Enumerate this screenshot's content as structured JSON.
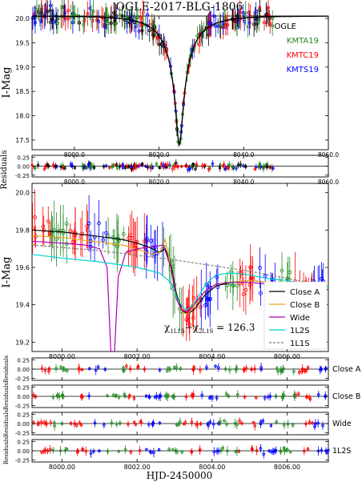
{
  "chart_data": [
    {
      "panel": "top-lightcurve",
      "type": "scatter",
      "title": "OGLE-2017-BLG-1806",
      "ylabel": "I-Mag",
      "xlim": [
        7990,
        8060
      ],
      "ylim": [
        20.05,
        17.3
      ],
      "yinverted": true,
      "xticks": [
        8000.0,
        8020.0,
        8040.0,
        8060.0
      ],
      "xtick_labels": [
        "8000.0",
        "8020.0",
        "8040.0",
        "8060.0"
      ],
      "yticks": [
        17.5,
        18.0,
        18.5,
        19.0,
        19.5,
        20.0
      ],
      "ytick_labels": [
        "17.5",
        "18.0",
        "18.5",
        "19.0",
        "19.5",
        "20.0"
      ],
      "legend_position": "top-right",
      "legend": [
        {
          "name": "OGLE",
          "color": "#000000"
        },
        {
          "name": "KMTA19",
          "color": "#228b22"
        },
        {
          "name": "KMTC19",
          "color": "#ff0000"
        },
        {
          "name": "KMTS19",
          "color": "#0000ff"
        }
      ],
      "model": {
        "type": "paczynski",
        "t0": 8024.8,
        "peak_mag": 17.4,
        "base_mag": 20.05,
        "tE": 9.0
      },
      "observations_note_color_order": [
        "#000000",
        "#228b22",
        "#ff0000",
        "#0000ff"
      ]
    },
    {
      "panel": "top-residuals",
      "type": "scatter",
      "ylabel": "Residuals",
      "xlim": [
        7990,
        8060
      ],
      "ylim": [
        0.3,
        -0.3
      ],
      "yticks": [
        -0.25,
        0.0,
        0.25
      ],
      "ytick_labels": [
        "-0.25",
        "0.00",
        "0.25"
      ],
      "xticks": [
        8000.0,
        8020.0,
        8040.0,
        8060.0
      ],
      "xtick_labels": [
        "8000.0",
        "8020.0",
        "8040.0",
        "8060.0"
      ]
    },
    {
      "panel": "zoom-lightcurve",
      "type": "line",
      "ylabel": "I-Mag",
      "xlim": [
        7999.2,
        8007.1
      ],
      "ylim": [
        20.05,
        19.15
      ],
      "yinverted": true,
      "xticks": [
        8000.0,
        8002.0,
        8004.0,
        8006.0
      ],
      "xtick_labels": [
        "8000.00",
        "8002.00",
        "8004.00",
        "8006.00"
      ],
      "yticks": [
        19.2,
        19.4,
        19.6,
        19.8,
        20.0
      ],
      "ytick_labels": [
        "19.2",
        "19.4",
        "19.6",
        "19.8",
        "20.0"
      ],
      "annotation": "χ²1L1S − χ²2L1S = 126.3",
      "annotation_prefix": "χ",
      "annotation_sub1": "1L1S",
      "annotation_mid": "−χ",
      "annotation_sub2": "2L1S",
      "annotation_suffix": " = 126.3",
      "legend_position": "bottom-right",
      "series": [
        {
          "name": "Close A",
          "color": "#000000",
          "style": "solid",
          "x": [
            7999.2,
            8000.0,
            8000.8,
            8001.6,
            8002.0,
            8002.3,
            8002.5,
            8002.6,
            8002.75,
            8002.9,
            8003.05,
            8003.2,
            8003.35,
            8003.55,
            8003.8,
            8004.1,
            8004.5,
            8005.0,
            8005.5,
            8006.0,
            8006.5,
            8007.1
          ],
          "y": [
            19.8,
            19.79,
            19.77,
            19.75,
            19.73,
            19.71,
            19.69,
            19.68,
            19.7,
            19.62,
            19.46,
            19.37,
            19.35,
            19.38,
            19.45,
            19.5,
            19.52,
            19.53,
            19.52,
            19.51,
            19.5,
            19.48
          ]
        },
        {
          "name": "Close B",
          "color": "#e8a317",
          "style": "solid",
          "x": [
            7999.2,
            8000.0,
            8000.8,
            8001.6,
            8002.0,
            8002.4,
            8002.6,
            8002.75,
            8002.9,
            8003.05,
            8003.2,
            8003.35,
            8003.55,
            8003.8,
            8004.1,
            8004.5,
            8005.0,
            8005.5,
            8006.0,
            8006.5,
            8007.1
          ],
          "y": [
            19.77,
            19.76,
            19.74,
            19.72,
            19.7,
            19.67,
            19.68,
            19.75,
            19.6,
            19.44,
            19.36,
            19.35,
            19.4,
            19.47,
            19.51,
            19.52,
            19.53,
            19.52,
            19.51,
            19.5,
            19.49
          ]
        },
        {
          "name": "Wide",
          "color": "#b000b0",
          "style": "solid",
          "x": [
            7999.2,
            8000.0,
            8000.6,
            8001.0,
            8001.2,
            8001.3,
            8001.4,
            8001.5,
            8001.7,
            8002.0,
            8002.4,
            8002.7,
            8002.9,
            8003.05,
            8003.2,
            8003.35,
            8003.55,
            8003.8,
            8004.1,
            8004.5,
            8005.0,
            8005.5,
            8006.0,
            8006.5,
            8007.1
          ],
          "y": [
            19.74,
            19.73,
            19.72,
            19.7,
            19.6,
            19.15,
            19.15,
            19.55,
            19.68,
            19.7,
            19.71,
            19.72,
            19.6,
            19.43,
            19.37,
            19.36,
            19.41,
            19.47,
            19.51,
            19.52,
            19.52,
            19.51,
            19.5,
            19.5,
            19.48
          ]
        },
        {
          "name": "1L2S",
          "color": "#00d0d0",
          "style": "solid",
          "x": [
            7999.2,
            8000.0,
            8001.0,
            8002.0,
            8002.6,
            8002.9,
            8003.1,
            8003.3,
            8003.5,
            8003.8,
            8004.1,
            8004.5,
            8005.0,
            8005.5,
            8006.0,
            8006.5,
            8007.1
          ],
          "y": [
            19.67,
            19.65,
            19.63,
            19.6,
            19.57,
            19.52,
            19.42,
            19.37,
            19.4,
            19.5,
            19.56,
            19.57,
            19.56,
            19.54,
            19.53,
            19.51,
            19.49
          ]
        },
        {
          "name": "1L1S",
          "color": "#7f7f7f",
          "style": "dashed",
          "x": [
            7999.2,
            8001.0,
            8003.0,
            8005.0,
            8007.1
          ],
          "y": [
            19.72,
            19.69,
            19.64,
            19.58,
            19.5
          ]
        }
      ]
    },
    {
      "panel": "residual-strips",
      "type": "scatter",
      "ylabel": "Residuals",
      "xlabel": "HJD-2450000",
      "xlim": [
        7999.2,
        8007.1
      ],
      "ylim": [
        0.3,
        -0.3
      ],
      "yticks": [
        -0.25,
        0.0,
        0.25
      ],
      "ytick_labels": [
        "-0.25",
        "0.00",
        "0.25"
      ],
      "xticks": [
        8000.0,
        8002.0,
        8004.0,
        8006.0
      ],
      "xtick_labels": [
        "8000.00",
        "8002.00",
        "8004.00",
        "8006.00"
      ],
      "models": [
        "Close A",
        "Close B",
        "Wide",
        "1L2S"
      ]
    }
  ]
}
